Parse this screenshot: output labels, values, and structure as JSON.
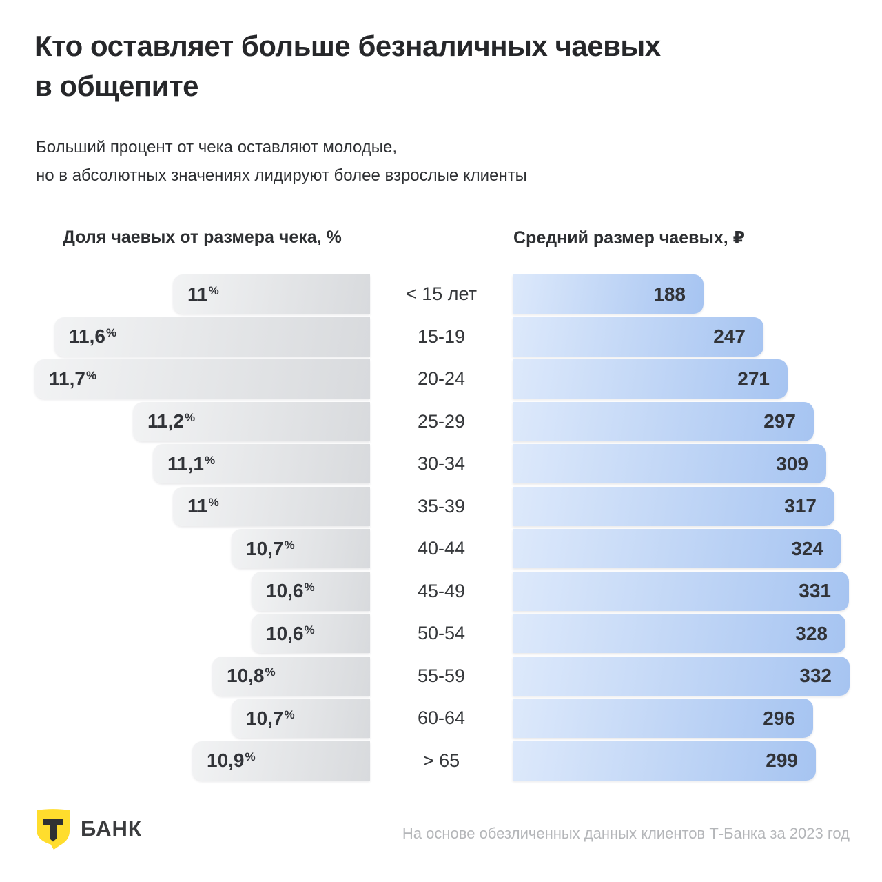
{
  "title_lines": [
    "Кто оставляет больше безналичных чаевых",
    "в общепите"
  ],
  "subtitle_lines": [
    "Больший процент от чека оставляют молодые,",
    "но в абсолютных значениях лидируют более взрослые клиенты"
  ],
  "brand": {
    "logo_letter": "Т",
    "name": "БАНК",
    "yellow": "#FFDD2D",
    "dark": "#2f3133"
  },
  "footer": {
    "source": "На основе обезличенных данных клиентов Т-Банка за 2023 год"
  },
  "chart_data": {
    "type": "bar",
    "orientation": "horizontal",
    "title": "Кто оставляет больше безналичных чаевых в общепите",
    "categories": [
      "< 15 лет",
      "15-19",
      "20-24",
      "25-29",
      "30-34",
      "35-39",
      "40-44",
      "45-49",
      "50-54",
      "55-59",
      "60-64",
      "> 65"
    ],
    "series": [
      {
        "name": "Доля чаевых от размера чека, %",
        "values": [
          11,
          11.6,
          11.7,
          11.2,
          11.1,
          11,
          10.7,
          10.6,
          10.6,
          10.8,
          10.7,
          10.9
        ],
        "labels": [
          "11",
          "11,6",
          "11,7",
          "11,2",
          "11,1",
          "11",
          "10,7",
          "10,6",
          "10,6",
          "10,8",
          "10,7",
          "10,9"
        ],
        "unit": "%",
        "direction": "left",
        "color_start": "#f2f3f4",
        "color_end": "#d8dadd"
      },
      {
        "name": "Средний размер чаевых, ₽",
        "values": [
          188,
          247,
          271,
          297,
          309,
          317,
          324,
          331,
          328,
          332,
          296,
          299
        ],
        "labels": [
          "188",
          "247",
          "271",
          "297",
          "309",
          "317",
          "324",
          "331",
          "328",
          "332",
          "296",
          "299"
        ],
        "unit": "₽",
        "direction": "right",
        "color_start": "#dde9fb",
        "color_end": "#a6c4f1"
      }
    ],
    "axis": {
      "left_baseline": 10,
      "left_max": 11.7,
      "right_min": 0,
      "right_max": 332,
      "grid": false,
      "legend_position": "column-headers"
    }
  }
}
